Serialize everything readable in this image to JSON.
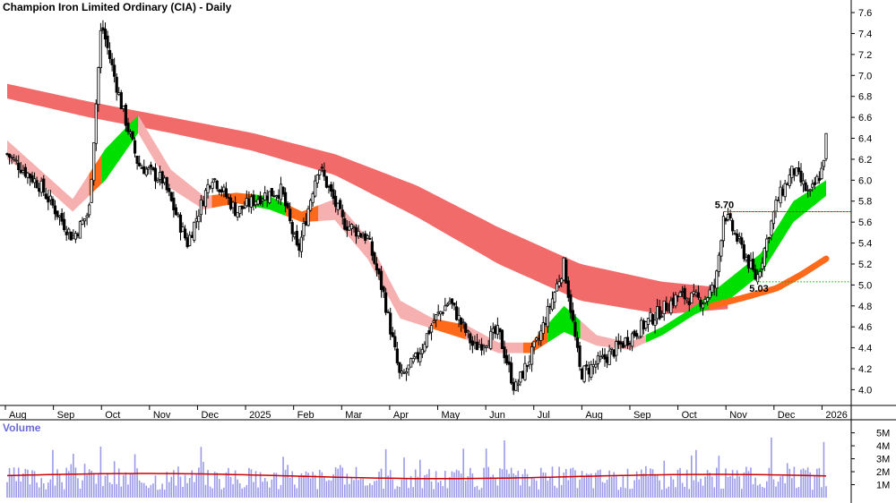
{
  "chart_data": [
    {
      "type": "candlestick",
      "title": "Champion Iron Limited Ordinary (CIA) - Daily",
      "y_ticks": [
        4.0,
        4.2,
        4.4,
        4.6,
        4.8,
        5.0,
        5.2,
        5.4,
        5.6,
        5.8,
        6.0,
        6.2,
        6.4,
        6.6,
        6.8,
        7.0,
        7.2,
        7.4,
        7.6
      ],
      "ylim": [
        3.85,
        7.72
      ],
      "x_labels": [
        "Aug",
        "Sep",
        "Oct",
        "Nov",
        "Dec",
        "2025",
        "Feb",
        "Mar",
        "Apr",
        "May",
        "Jun",
        "Jul",
        "Aug",
        "Sep",
        "Oct",
        "Nov",
        "Dec",
        "2026"
      ],
      "annotations": [
        {
          "label": "5.70",
          "value": 5.7
        },
        {
          "label": "5.03",
          "value": 5.03
        }
      ],
      "colors": {
        "long_band": "#f26b6b",
        "short_band_up": "#00e000",
        "short_band_down": "#ff6a1a",
        "short_band_weak": "#f7b0b0",
        "volume_bar": "#9a9ae8",
        "volume_avg": "#cc0000",
        "ref_line": "#00aa00",
        "ref_line_alt": "#dd0000"
      },
      "price_key_points": [
        {
          "x": 0.0,
          "c": 6.25
        },
        {
          "x": 0.04,
          "c": 5.95
        },
        {
          "x": 0.08,
          "c": 5.45
        },
        {
          "x": 0.1,
          "c": 5.7
        },
        {
          "x": 0.115,
          "c": 7.5
        },
        {
          "x": 0.14,
          "c": 6.7
        },
        {
          "x": 0.16,
          "c": 6.15
        },
        {
          "x": 0.19,
          "c": 6.0
        },
        {
          "x": 0.22,
          "c": 5.4
        },
        {
          "x": 0.25,
          "c": 6.05
        },
        {
          "x": 0.28,
          "c": 5.7
        },
        {
          "x": 0.31,
          "c": 5.85
        },
        {
          "x": 0.335,
          "c": 5.9
        },
        {
          "x": 0.355,
          "c": 5.3
        },
        {
          "x": 0.38,
          "c": 6.15
        },
        {
          "x": 0.41,
          "c": 5.6
        },
        {
          "x": 0.44,
          "c": 5.45
        },
        {
          "x": 0.46,
          "c": 4.9
        },
        {
          "x": 0.48,
          "c": 4.1
        },
        {
          "x": 0.5,
          "c": 4.3
        },
        {
          "x": 0.52,
          "c": 4.65
        },
        {
          "x": 0.54,
          "c": 4.85
        },
        {
          "x": 0.57,
          "c": 4.4
        },
        {
          "x": 0.6,
          "c": 4.55
        },
        {
          "x": 0.62,
          "c": 4.0
        },
        {
          "x": 0.65,
          "c": 4.5
        },
        {
          "x": 0.68,
          "c": 5.2
        },
        {
          "x": 0.7,
          "c": 4.15
        },
        {
          "x": 0.73,
          "c": 4.3
        },
        {
          "x": 0.76,
          "c": 4.5
        },
        {
          "x": 0.79,
          "c": 4.7
        },
        {
          "x": 0.82,
          "c": 4.9
        },
        {
          "x": 0.85,
          "c": 4.85
        },
        {
          "x": 0.865,
          "c": 5.0
        },
        {
          "x": 0.875,
          "c": 5.7
        },
        {
          "x": 0.9,
          "c": 5.3
        },
        {
          "x": 0.915,
          "c": 5.05
        },
        {
          "x": 0.94,
          "c": 5.8
        },
        {
          "x": 0.96,
          "c": 6.1
        },
        {
          "x": 0.98,
          "c": 5.85
        },
        {
          "x": 0.995,
          "c": 6.1
        },
        {
          "x": 1.0,
          "c": 6.4
        }
      ],
      "long_band_upper": [
        {
          "x": 0.0,
          "v": 6.92
        },
        {
          "x": 0.1,
          "v": 6.75
        },
        {
          "x": 0.2,
          "v": 6.6
        },
        {
          "x": 0.3,
          "v": 6.45
        },
        {
          "x": 0.4,
          "v": 6.25
        },
        {
          "x": 0.5,
          "v": 5.95
        },
        {
          "x": 0.6,
          "v": 5.55
        },
        {
          "x": 0.7,
          "v": 5.2
        },
        {
          "x": 0.8,
          "v": 5.03
        },
        {
          "x": 0.88,
          "v": 4.97
        }
      ],
      "long_band_lower": [
        {
          "x": 0.0,
          "v": 6.78
        },
        {
          "x": 0.1,
          "v": 6.6
        },
        {
          "x": 0.2,
          "v": 6.45
        },
        {
          "x": 0.3,
          "v": 6.28
        },
        {
          "x": 0.4,
          "v": 6.05
        },
        {
          "x": 0.5,
          "v": 5.65
        },
        {
          "x": 0.6,
          "v": 5.2
        },
        {
          "x": 0.7,
          "v": 4.85
        },
        {
          "x": 0.8,
          "v": 4.72
        },
        {
          "x": 0.88,
          "v": 4.77
        }
      ],
      "short_band_upper": [
        {
          "x": 0.0,
          "v": 6.38
        },
        {
          "x": 0.04,
          "v": 6.1
        },
        {
          "x": 0.08,
          "v": 5.82
        },
        {
          "x": 0.12,
          "v": 6.3
        },
        {
          "x": 0.16,
          "v": 6.62
        },
        {
          "x": 0.2,
          "v": 6.1
        },
        {
          "x": 0.24,
          "v": 5.85
        },
        {
          "x": 0.28,
          "v": 5.88
        },
        {
          "x": 0.32,
          "v": 5.85
        },
        {
          "x": 0.36,
          "v": 5.7
        },
        {
          "x": 0.4,
          "v": 5.82
        },
        {
          "x": 0.44,
          "v": 5.45
        },
        {
          "x": 0.48,
          "v": 4.85
        },
        {
          "x": 0.52,
          "v": 4.68
        },
        {
          "x": 0.56,
          "v": 4.62
        },
        {
          "x": 0.6,
          "v": 4.45
        },
        {
          "x": 0.64,
          "v": 4.45
        },
        {
          "x": 0.68,
          "v": 4.8
        },
        {
          "x": 0.72,
          "v": 4.52
        },
        {
          "x": 0.76,
          "v": 4.45
        },
        {
          "x": 0.8,
          "v": 4.6
        },
        {
          "x": 0.84,
          "v": 4.8
        },
        {
          "x": 0.88,
          "v": 5.05
        },
        {
          "x": 0.92,
          "v": 5.3
        },
        {
          "x": 0.96,
          "v": 5.8
        },
        {
          "x": 1.0,
          "v": 6.0
        }
      ],
      "short_band_lower": [
        {
          "x": 0.0,
          "v": 6.2
        },
        {
          "x": 0.04,
          "v": 5.98
        },
        {
          "x": 0.08,
          "v": 5.7
        },
        {
          "x": 0.12,
          "v": 6.0
        },
        {
          "x": 0.16,
          "v": 6.45
        },
        {
          "x": 0.2,
          "v": 5.92
        },
        {
          "x": 0.24,
          "v": 5.72
        },
        {
          "x": 0.28,
          "v": 5.78
        },
        {
          "x": 0.32,
          "v": 5.72
        },
        {
          "x": 0.36,
          "v": 5.6
        },
        {
          "x": 0.4,
          "v": 5.62
        },
        {
          "x": 0.44,
          "v": 5.25
        },
        {
          "x": 0.48,
          "v": 4.68
        },
        {
          "x": 0.52,
          "v": 4.58
        },
        {
          "x": 0.56,
          "v": 4.48
        },
        {
          "x": 0.6,
          "v": 4.35
        },
        {
          "x": 0.64,
          "v": 4.35
        },
        {
          "x": 0.68,
          "v": 4.55
        },
        {
          "x": 0.72,
          "v": 4.42
        },
        {
          "x": 0.76,
          "v": 4.38
        },
        {
          "x": 0.8,
          "v": 4.52
        },
        {
          "x": 0.84,
          "v": 4.72
        },
        {
          "x": 0.88,
          "v": 4.85
        },
        {
          "x": 0.92,
          "v": 5.1
        },
        {
          "x": 0.96,
          "v": 5.6
        },
        {
          "x": 1.0,
          "v": 5.85
        }
      ],
      "slow_line": [
        {
          "x": 0.86,
          "v": 4.8
        },
        {
          "x": 0.9,
          "v": 4.88
        },
        {
          "x": 0.94,
          "v": 4.97
        },
        {
          "x": 0.97,
          "v": 5.1
        },
        {
          "x": 1.0,
          "v": 5.25
        }
      ]
    },
    {
      "type": "bar",
      "title": "Volume",
      "y_ticks": [
        "5M",
        "4M",
        "3M",
        "2M",
        "1M"
      ],
      "y_tick_values": [
        5,
        4,
        3,
        2,
        1
      ],
      "ylim": [
        0,
        5.8
      ],
      "average_level": 1.7
    }
  ]
}
